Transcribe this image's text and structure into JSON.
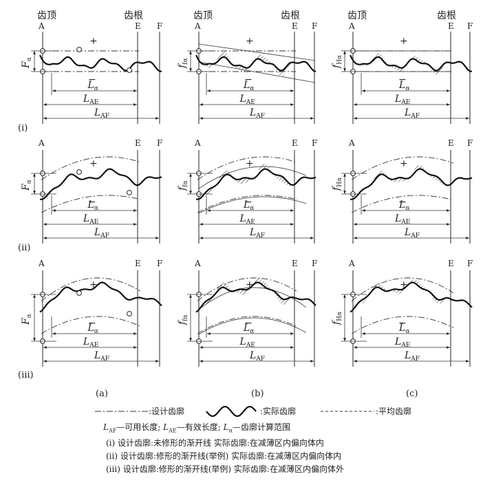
{
  "figure": {
    "top_labels": {
      "tip": "齿顶",
      "root": "齿根"
    },
    "points": {
      "a": "A",
      "e": "E",
      "f": "F"
    },
    "row_labels": [
      "(i)",
      "(ii)",
      "(iii)"
    ],
    "column_labels": [
      "(a)",
      "(b)",
      "(c)"
    ],
    "column_symbols": {
      "a": {
        "base": "F",
        "sub": "α"
      },
      "b": {
        "base": "f",
        "sub": "fα"
      },
      "c": {
        "base": "f",
        "sub": "Hα"
      }
    },
    "dims": {
      "l_alpha": {
        "base": "L",
        "sub": "α"
      },
      "l_ae": {
        "base": "L",
        "sub": "AE"
      },
      "l_af": {
        "base": "L",
        "sub": "AF"
      }
    },
    "signs": {
      "plus": "+",
      "minus": "−"
    }
  },
  "legend": {
    "design": ":设计齿廓",
    "actual": ":实际齿廓",
    "mean": ":平均齿廓"
  },
  "caption": {
    "definitions": {
      "af": {
        "base": "L",
        "sub": "AF",
        "text": "—可用长度;"
      },
      "ae": {
        "base": "L",
        "sub": "AE",
        "text": "—有效长度;"
      },
      "alpha": {
        "base": "L",
        "sub": "α",
        "text": "—齿廓计算范围"
      }
    },
    "notes": [
      "(i) 设计齿廓:未修形的渐开线  实际齿廓:在减薄区内偏向体内",
      "(ii) 设计齿廓:修形的渐开线(举例)  实际齿廓:在减薄区内偏向体内",
      "(iii) 设计齿廓:修形的渐开线(举例)  实际齿廓:在减薄区内偏向体外"
    ]
  }
}
